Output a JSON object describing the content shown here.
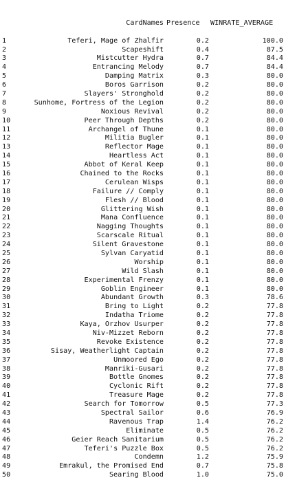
{
  "table": {
    "columns": [
      "CardNames",
      "Presence",
      "WINRATE_AVERAGE"
    ],
    "rows": [
      {
        "idx": "1",
        "name": "Teferi, Mage of Zhalfir",
        "presence": "0.2",
        "winrate": "100.0"
      },
      {
        "idx": "2",
        "name": "Scapeshift",
        "presence": "0.4",
        "winrate": "87.5"
      },
      {
        "idx": "3",
        "name": "Mistcutter Hydra",
        "presence": "0.7",
        "winrate": "84.4"
      },
      {
        "idx": "4",
        "name": "Entrancing Melody",
        "presence": "0.7",
        "winrate": "84.4"
      },
      {
        "idx": "5",
        "name": "Damping Matrix",
        "presence": "0.3",
        "winrate": "80.0"
      },
      {
        "idx": "6",
        "name": "Boros Garrison",
        "presence": "0.2",
        "winrate": "80.0"
      },
      {
        "idx": "7",
        "name": "Slayers' Stronghold",
        "presence": "0.2",
        "winrate": "80.0"
      },
      {
        "idx": "8",
        "name": "Sunhome, Fortress of the Legion",
        "presence": "0.2",
        "winrate": "80.0"
      },
      {
        "idx": "9",
        "name": "Noxious Revival",
        "presence": "0.2",
        "winrate": "80.0"
      },
      {
        "idx": "10",
        "name": "Peer Through Depths",
        "presence": "0.2",
        "winrate": "80.0"
      },
      {
        "idx": "11",
        "name": "Archangel of Thune",
        "presence": "0.1",
        "winrate": "80.0"
      },
      {
        "idx": "12",
        "name": "Militia Bugler",
        "presence": "0.1",
        "winrate": "80.0"
      },
      {
        "idx": "13",
        "name": "Reflector Mage",
        "presence": "0.1",
        "winrate": "80.0"
      },
      {
        "idx": "14",
        "name": "Heartless Act",
        "presence": "0.1",
        "winrate": "80.0"
      },
      {
        "idx": "15",
        "name": "Abbot of Keral Keep",
        "presence": "0.1",
        "winrate": "80.0"
      },
      {
        "idx": "16",
        "name": "Chained to the Rocks",
        "presence": "0.1",
        "winrate": "80.0"
      },
      {
        "idx": "17",
        "name": "Cerulean Wisps",
        "presence": "0.1",
        "winrate": "80.0"
      },
      {
        "idx": "18",
        "name": "Failure // Comply",
        "presence": "0.1",
        "winrate": "80.0"
      },
      {
        "idx": "19",
        "name": "Flesh // Blood",
        "presence": "0.1",
        "winrate": "80.0"
      },
      {
        "idx": "20",
        "name": "Glittering Wish",
        "presence": "0.1",
        "winrate": "80.0"
      },
      {
        "idx": "21",
        "name": "Mana Confluence",
        "presence": "0.1",
        "winrate": "80.0"
      },
      {
        "idx": "22",
        "name": "Nagging Thoughts",
        "presence": "0.1",
        "winrate": "80.0"
      },
      {
        "idx": "23",
        "name": "Scarscale Ritual",
        "presence": "0.1",
        "winrate": "80.0"
      },
      {
        "idx": "24",
        "name": "Silent Gravestone",
        "presence": "0.1",
        "winrate": "80.0"
      },
      {
        "idx": "25",
        "name": "Sylvan Caryatid",
        "presence": "0.1",
        "winrate": "80.0"
      },
      {
        "idx": "26",
        "name": "Worship",
        "presence": "0.1",
        "winrate": "80.0"
      },
      {
        "idx": "27",
        "name": "Wild Slash",
        "presence": "0.1",
        "winrate": "80.0"
      },
      {
        "idx": "28",
        "name": "Experimental Frenzy",
        "presence": "0.1",
        "winrate": "80.0"
      },
      {
        "idx": "29",
        "name": "Goblin Engineer",
        "presence": "0.1",
        "winrate": "80.0"
      },
      {
        "idx": "30",
        "name": "Abundant Growth",
        "presence": "0.3",
        "winrate": "78.6"
      },
      {
        "idx": "31",
        "name": "Bring to Light",
        "presence": "0.2",
        "winrate": "77.8"
      },
      {
        "idx": "32",
        "name": "Indatha Triome",
        "presence": "0.2",
        "winrate": "77.8"
      },
      {
        "idx": "33",
        "name": "Kaya, Orzhov Usurper",
        "presence": "0.2",
        "winrate": "77.8"
      },
      {
        "idx": "34",
        "name": "Niv-Mizzet Reborn",
        "presence": "0.2",
        "winrate": "77.8"
      },
      {
        "idx": "35",
        "name": "Revoke Existence",
        "presence": "0.2",
        "winrate": "77.8"
      },
      {
        "idx": "36",
        "name": "Sisay, Weatherlight Captain",
        "presence": "0.2",
        "winrate": "77.8"
      },
      {
        "idx": "37",
        "name": "Unmoored Ego",
        "presence": "0.2",
        "winrate": "77.8"
      },
      {
        "idx": "38",
        "name": "Manriki-Gusari",
        "presence": "0.2",
        "winrate": "77.8"
      },
      {
        "idx": "39",
        "name": "Bottle Gnomes",
        "presence": "0.2",
        "winrate": "77.8"
      },
      {
        "idx": "40",
        "name": "Cyclonic Rift",
        "presence": "0.2",
        "winrate": "77.8"
      },
      {
        "idx": "41",
        "name": "Treasure Mage",
        "presence": "0.2",
        "winrate": "77.8"
      },
      {
        "idx": "42",
        "name": "Search for Tomorrow",
        "presence": "0.5",
        "winrate": "77.3"
      },
      {
        "idx": "43",
        "name": "Spectral Sailor",
        "presence": "0.6",
        "winrate": "76.9"
      },
      {
        "idx": "44",
        "name": "Ravenous Trap",
        "presence": "1.4",
        "winrate": "76.2"
      },
      {
        "idx": "45",
        "name": "Eliminate",
        "presence": "0.5",
        "winrate": "76.2"
      },
      {
        "idx": "46",
        "name": "Geier Reach Sanitarium",
        "presence": "0.5",
        "winrate": "76.2"
      },
      {
        "idx": "47",
        "name": "Teferi's Puzzle Box",
        "presence": "0.5",
        "winrate": "76.2"
      },
      {
        "idx": "48",
        "name": "Condemn",
        "presence": "1.2",
        "winrate": "75.9"
      },
      {
        "idx": "49",
        "name": "Emrakul, the Promised End",
        "presence": "0.7",
        "winrate": "75.8"
      },
      {
        "idx": "50",
        "name": "Searing Blood",
        "presence": "1.0",
        "winrate": "75.0"
      }
    ]
  }
}
